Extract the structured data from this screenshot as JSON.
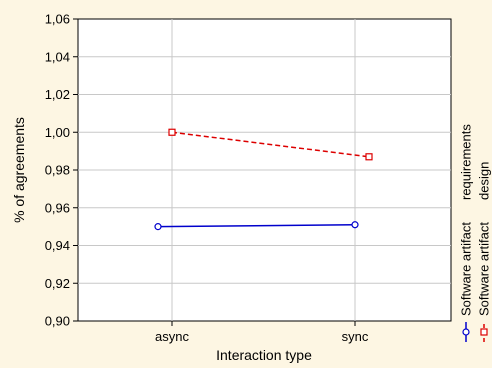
{
  "chart_data": {
    "type": "line",
    "title": "",
    "xlabel": "Interaction type",
    "ylabel": "% of agreements",
    "categories": [
      "async",
      "sync"
    ],
    "ylim": [
      0.9,
      1.06
    ],
    "yticks": [
      "0,90",
      "0,92",
      "0,94",
      "0,96",
      "0,98",
      "1,00",
      "1,02",
      "1,04",
      "1,06"
    ],
    "yticks_values": [
      0.9,
      0.92,
      0.94,
      0.96,
      0.98,
      1.0,
      1.02,
      1.04,
      1.06
    ],
    "grid": true,
    "legend_position": "right",
    "series": [
      {
        "name": "Software artifact\nrequirements",
        "values": [
          0.95,
          0.951
        ],
        "color": "#0000cc",
        "line_style": "solid",
        "marker": "circle"
      },
      {
        "name": "Software artifact\ndesign",
        "values": [
          1.0,
          0.987
        ],
        "color": "#dd0000",
        "line_style": "dashed",
        "marker": "square"
      }
    ],
    "legend": [
      {
        "line1": "Software artifact",
        "line2": "requirements"
      },
      {
        "line1": "Software artifact",
        "line2": "design"
      }
    ]
  }
}
